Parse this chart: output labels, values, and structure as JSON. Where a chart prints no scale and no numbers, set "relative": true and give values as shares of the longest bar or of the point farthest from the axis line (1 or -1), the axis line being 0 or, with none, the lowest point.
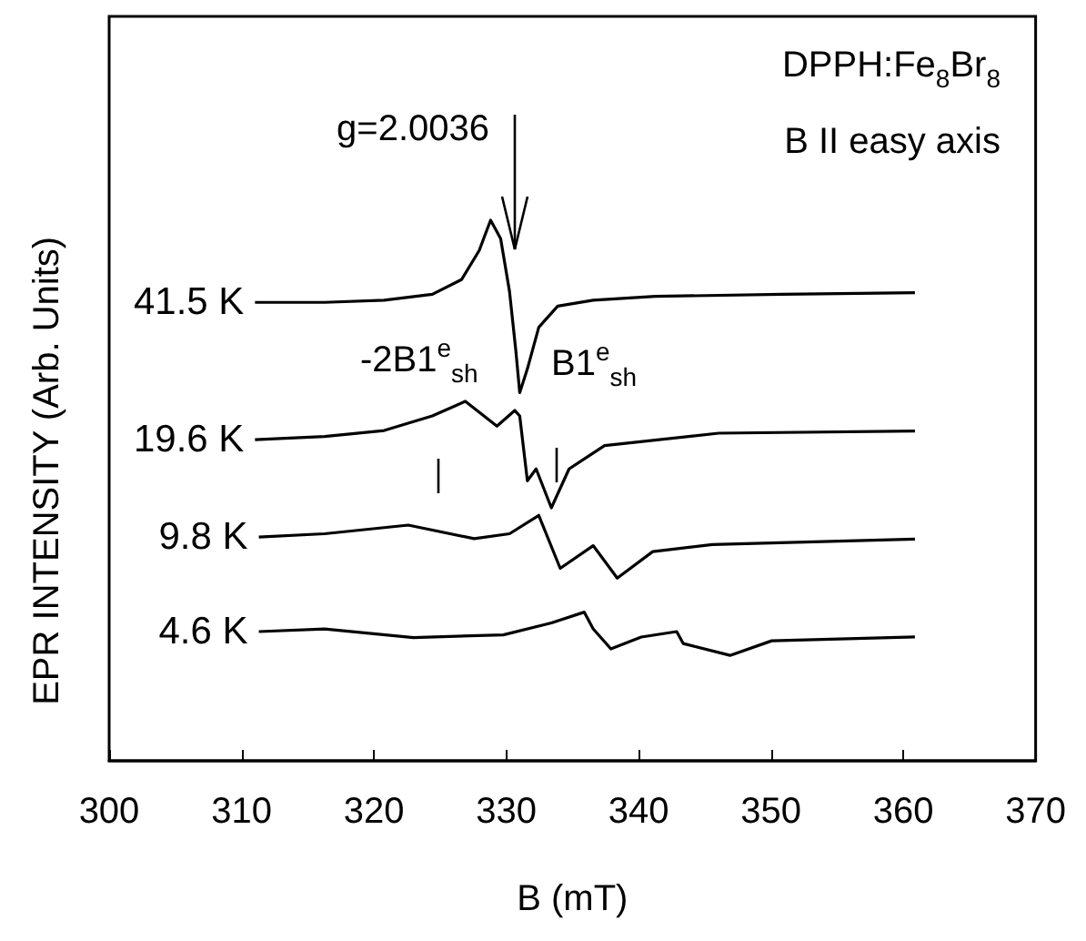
{
  "chart_data": {
    "type": "line",
    "relative": true,
    "xlabel": "B (mT)",
    "ylabel": "EPR INTENSITY (Arb. Units)",
    "xlim": [
      300,
      370
    ],
    "xticks": [
      300,
      310,
      320,
      330,
      340,
      350,
      360,
      370
    ],
    "grid": false,
    "legend": false,
    "marker": "none",
    "line_style": "solid",
    "series": [
      {
        "name": "41.5 K",
        "color": "#000000",
        "x": [
          311.02,
          316.28,
          320.78,
          324.42,
          326.62,
          327.96,
          328.82,
          329.58,
          330.25,
          330.73,
          331.02,
          331.6,
          332.46,
          333.89,
          336.57,
          341.26,
          350.83,
          360.88
        ],
        "values": [
          0.848,
          0.848,
          0.852,
          0.863,
          0.89,
          0.944,
          1.0,
          0.966,
          0.868,
          0.758,
          0.681,
          0.725,
          0.802,
          0.841,
          0.852,
          0.859,
          0.863,
          0.866
        ]
      },
      {
        "name": "19.6 K",
        "color": "#000000",
        "x": [
          311.02,
          316.28,
          320.78,
          324.42,
          326.91,
          329.3,
          330.65,
          331.02,
          331.6,
          332.26,
          333.41,
          334.75,
          337.43,
          346.05,
          360.88
        ],
        "values": [
          0.594,
          0.6,
          0.611,
          0.638,
          0.665,
          0.619,
          0.648,
          0.638,
          0.518,
          0.54,
          0.468,
          0.54,
          0.583,
          0.606,
          0.61
        ]
      },
      {
        "name": "9.8 K",
        "color": "#000000",
        "x": [
          311.31,
          316.28,
          322.6,
          327.58,
          330.25,
          332.46,
          334.08,
          336.57,
          338.39,
          341.07,
          345.57,
          360.88
        ],
        "values": [
          0.414,
          0.42,
          0.436,
          0.411,
          0.42,
          0.454,
          0.356,
          0.398,
          0.338,
          0.387,
          0.4,
          0.41
        ]
      },
      {
        "name": "4.6 K",
        "color": "#000000",
        "x": [
          311.31,
          316.28,
          322.99,
          329.78,
          333.41,
          335.9,
          336.57,
          337.91,
          340.2,
          342.88,
          343.37,
          346.91,
          350.06,
          360.88
        ],
        "values": [
          0.239,
          0.244,
          0.228,
          0.233,
          0.255,
          0.275,
          0.244,
          0.207,
          0.229,
          0.239,
          0.217,
          0.195,
          0.222,
          0.229
        ]
      }
    ],
    "annotations": [
      "DPPH:Fe$_{8}$Br$_{8}$",
      "B II easy axis",
      "g=2.0036",
      "-2B1$^{e}$$_{sh}$",
      "B1$^{e}$$_{sh}$"
    ]
  }
}
